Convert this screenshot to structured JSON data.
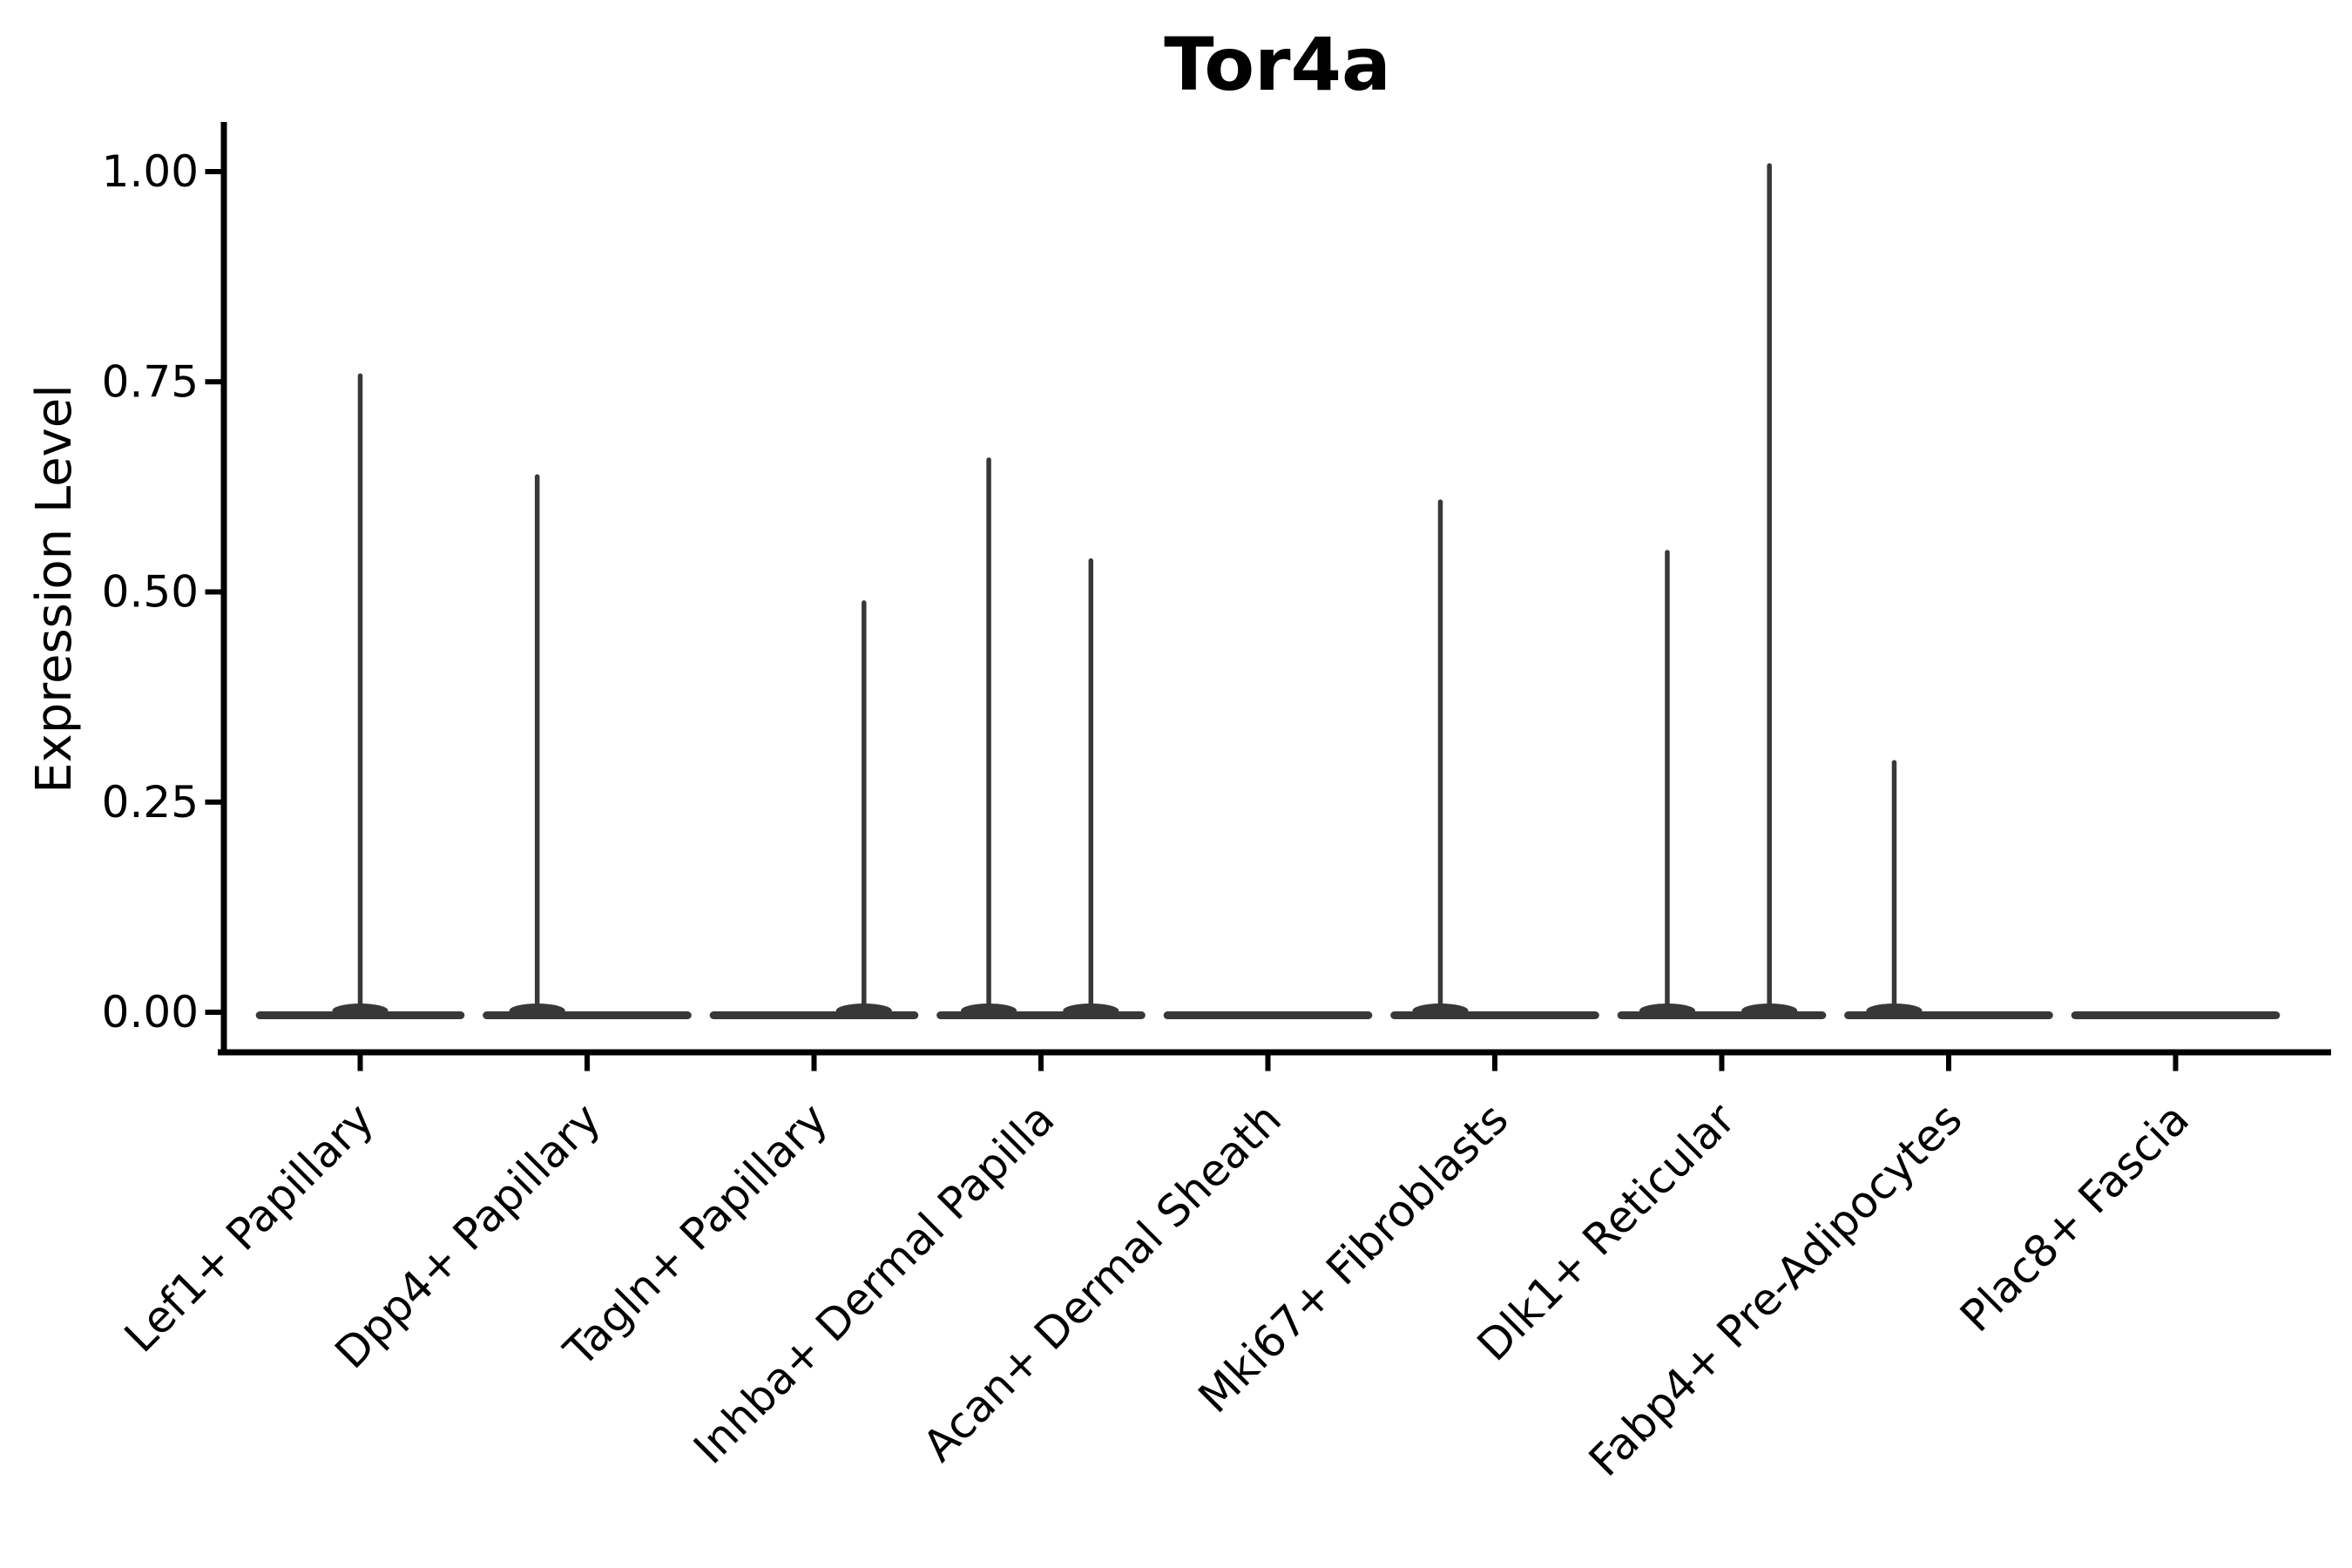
{
  "chart": {
    "title": "Tor4a",
    "ylabel": "Expression Level"
  },
  "chart_data": {
    "type": "violin",
    "title": "Tor4a",
    "xlabel": "",
    "ylabel": "Expression Level",
    "ylim": [
      -0.05,
      1.07
    ],
    "yticks": [
      0.0,
      0.25,
      0.5,
      0.75,
      1.0
    ],
    "ytick_labels": [
      "0.00",
      "0.25",
      "0.50",
      "0.75",
      "1.00"
    ],
    "x_tick_rotation": 45,
    "grid": false,
    "legend": "none",
    "categories": [
      "Lef1+ Papillary",
      "Dpp4+ Papillary",
      "Tagln+ Papillary",
      "Inhba+ Dermal Papilla",
      "Acan+ Dermal Sheath",
      "Mki67+ Fibroblasts",
      "Dlk1+ Reticular",
      "Fabp4+ Pre-Adipocytes",
      "Plac8+ Fascia"
    ],
    "series": [
      {
        "category": "Lef1+ Papillary",
        "base_value": 0.0,
        "base_width": 0.92,
        "spikes": [
          {
            "pos": 0.0,
            "max": 0.76
          }
        ]
      },
      {
        "category": "Dpp4+ Papillary",
        "base_value": 0.0,
        "base_width": 0.92,
        "spikes": [
          {
            "pos": -0.22,
            "max": 0.64
          }
        ]
      },
      {
        "category": "Tagln+ Papillary",
        "base_value": 0.0,
        "base_width": 0.92,
        "spikes": [
          {
            "pos": 0.22,
            "max": 0.49
          }
        ]
      },
      {
        "category": "Inhba+ Dermal Papilla",
        "base_value": 0.0,
        "base_width": 0.92,
        "spikes": [
          {
            "pos": -0.23,
            "max": 0.66
          },
          {
            "pos": 0.22,
            "max": 0.54
          }
        ]
      },
      {
        "category": "Acan+ Dermal Sheath",
        "base_value": 0.0,
        "base_width": 0.92,
        "spikes": []
      },
      {
        "category": "Mki67+ Fibroblasts",
        "base_value": 0.0,
        "base_width": 0.92,
        "spikes": [
          {
            "pos": -0.24,
            "max": 0.61
          }
        ]
      },
      {
        "category": "Dlk1+ Reticular",
        "base_value": 0.0,
        "base_width": 0.92,
        "spikes": [
          {
            "pos": -0.24,
            "max": 0.55
          },
          {
            "pos": 0.21,
            "max": 1.01
          }
        ]
      },
      {
        "category": "Fabp4+ Pre-Adipocytes",
        "base_value": 0.0,
        "base_width": 0.92,
        "spikes": [
          {
            "pos": -0.24,
            "max": 0.3
          }
        ]
      },
      {
        "category": "Plac8+ Fascia",
        "base_value": 0.0,
        "base_width": 0.92,
        "spikes": []
      }
    ],
    "colors": {
      "violin_ink": "#383838",
      "axis_ink": "#000000",
      "background": "#ffffff"
    }
  }
}
